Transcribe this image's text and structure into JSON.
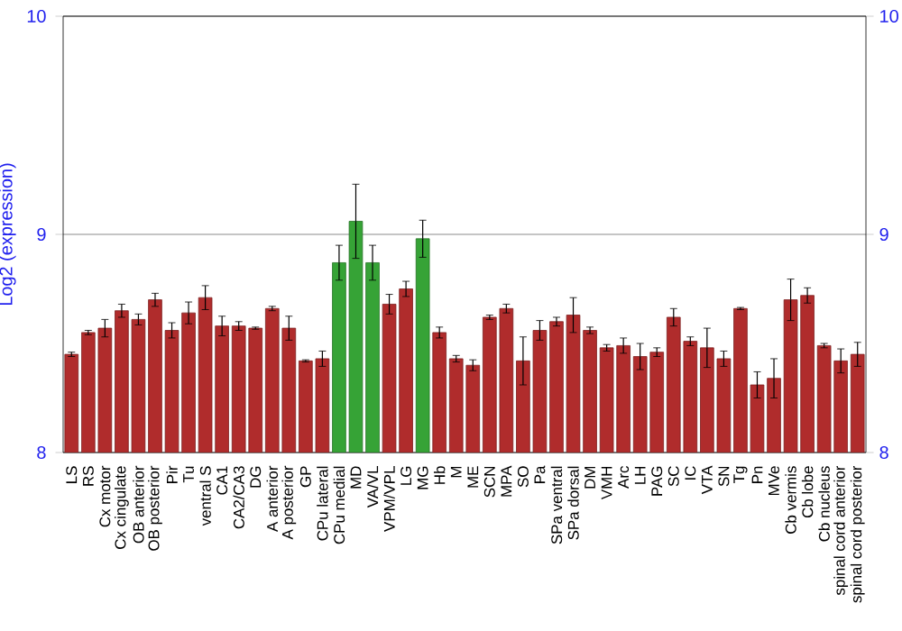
{
  "chart_data": {
    "type": "bar",
    "ylabel": "Log2 (expression)",
    "categories": [
      "LS",
      "RS",
      "Cx motor",
      "Cx cingulate",
      "OB anterior",
      "OB posterior",
      "Pir",
      "Tu",
      "ventral S",
      "CA1",
      "CA2/CA3",
      "DG",
      "A anterior",
      "A posterior",
      "GP",
      "CPu lateral",
      "CPu medial",
      "MD",
      "VA/VL",
      "VPM/VPL",
      "LG",
      "MG",
      "Hb",
      "M",
      "ME",
      "SCN",
      "MPA",
      "SO",
      "Pa",
      "SPa ventral",
      "SPa dorsal",
      "DM",
      "VMH",
      "Arc",
      "LH",
      "PAG",
      "SC",
      "IC",
      "VTA",
      "SN",
      "Tg",
      "Pn",
      "MVe",
      "Cb vermis",
      "Cb lobe",
      "Cb nucleus",
      "spinal cord anterior",
      "spinal cord posterior"
    ],
    "values": [
      8.45,
      8.55,
      8.57,
      8.65,
      8.61,
      8.7,
      8.56,
      8.64,
      8.71,
      8.58,
      8.58,
      8.57,
      8.66,
      8.57,
      8.42,
      8.43,
      8.87,
      9.06,
      8.87,
      8.68,
      8.75,
      8.98,
      8.55,
      8.43,
      8.4,
      8.62,
      8.66,
      8.42,
      8.56,
      8.6,
      8.63,
      8.56,
      8.48,
      8.49,
      8.44,
      8.46,
      8.62,
      8.51,
      8.48,
      8.43,
      8.66,
      8.31,
      8.34,
      8.7,
      8.72,
      8.49,
      8.42,
      8.45
    ],
    "errors": [
      0.01,
      0.01,
      0.04,
      0.03,
      0.025,
      0.03,
      0.035,
      0.05,
      0.055,
      0.045,
      0.02,
      0.005,
      0.01,
      0.055,
      0.005,
      0.035,
      0.08,
      0.17,
      0.08,
      0.045,
      0.035,
      0.085,
      0.025,
      0.015,
      0.025,
      0.01,
      0.02,
      0.11,
      0.045,
      0.02,
      0.08,
      0.015,
      0.015,
      0.035,
      0.06,
      0.02,
      0.04,
      0.02,
      0.09,
      0.035,
      0.005,
      0.06,
      0.09,
      0.095,
      0.035,
      0.01,
      0.055,
      0.055
    ],
    "colors": [
      "#b02c2c",
      "#b02c2c",
      "#b02c2c",
      "#b02c2c",
      "#b02c2c",
      "#b02c2c",
      "#b02c2c",
      "#b02c2c",
      "#b02c2c",
      "#b02c2c",
      "#b02c2c",
      "#b02c2c",
      "#b02c2c",
      "#b02c2c",
      "#b02c2c",
      "#b02c2c",
      "#36a336",
      "#36a336",
      "#36a336",
      "#b02c2c",
      "#b02c2c",
      "#36a336",
      "#b02c2c",
      "#b02c2c",
      "#b02c2c",
      "#b02c2c",
      "#b02c2c",
      "#b02c2c",
      "#b02c2c",
      "#b02c2c",
      "#b02c2c",
      "#b02c2c",
      "#b02c2c",
      "#b02c2c",
      "#b02c2c",
      "#b02c2c",
      "#b02c2c",
      "#b02c2c",
      "#b02c2c",
      "#b02c2c",
      "#b02c2c",
      "#b02c2c",
      "#b02c2c",
      "#b02c2c",
      "#b02c2c",
      "#b02c2c",
      "#b02c2c",
      "#b02c2c"
    ],
    "ylim": [
      8,
      10
    ],
    "yticks": [
      8,
      9,
      10
    ],
    "y2lim": [
      8,
      10
    ],
    "y2ticks": [
      8,
      9,
      10
    ],
    "grid": "y"
  }
}
